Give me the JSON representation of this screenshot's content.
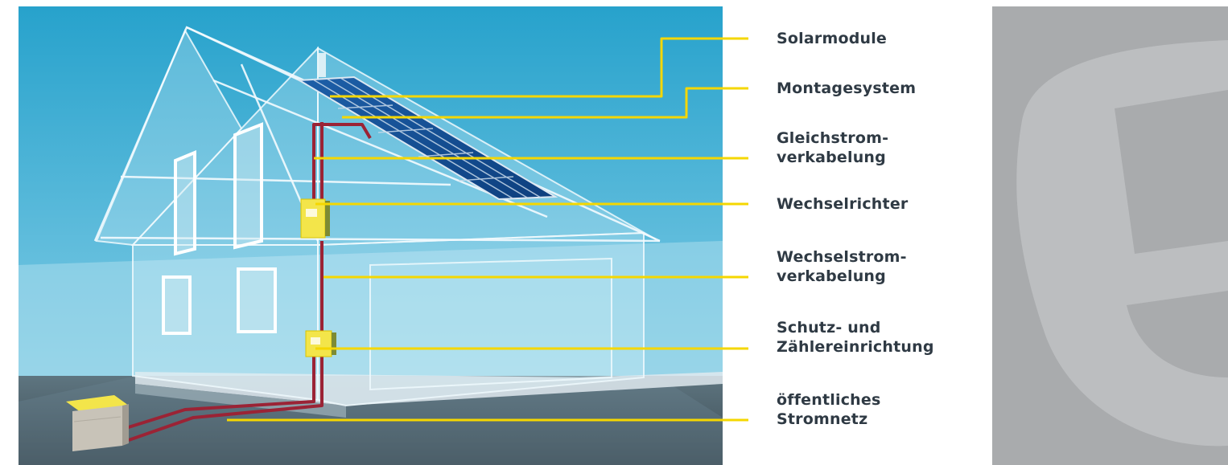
{
  "colors": {
    "sky_top": "#2aa6cf",
    "sky_bottom": "#7ecbe3",
    "ground": "#4a5c66",
    "accent_line": "#f5d700",
    "cable": "#9b2335",
    "label_text": "#2f3a44",
    "right_panel": "#a9abad",
    "logo_shape": "#bdbfc1"
  },
  "labels": [
    {
      "id": "solarmodule",
      "lines": [
        "Solarmodule"
      ]
    },
    {
      "id": "montagesystem",
      "lines": [
        "Montagesystem"
      ]
    },
    {
      "id": "gleichstromverkabelung",
      "lines": [
        "Gleichstrom-",
        "verkabelung"
      ]
    },
    {
      "id": "wechselrichter",
      "lines": [
        "Wechselrichter"
      ]
    },
    {
      "id": "wechselstromverkabelung",
      "lines": [
        "Wechselstrom-",
        "verkabelung"
      ]
    },
    {
      "id": "schutz-zaehler",
      "lines": [
        "Schutz- und",
        "Zählereinrichtung"
      ]
    },
    {
      "id": "stromnetz",
      "lines": [
        "öffentliches",
        "Stromnetz"
      ]
    }
  ],
  "illustration": {
    "subject": "house-with-solar-installation",
    "logo": "decorative-s-logo"
  }
}
